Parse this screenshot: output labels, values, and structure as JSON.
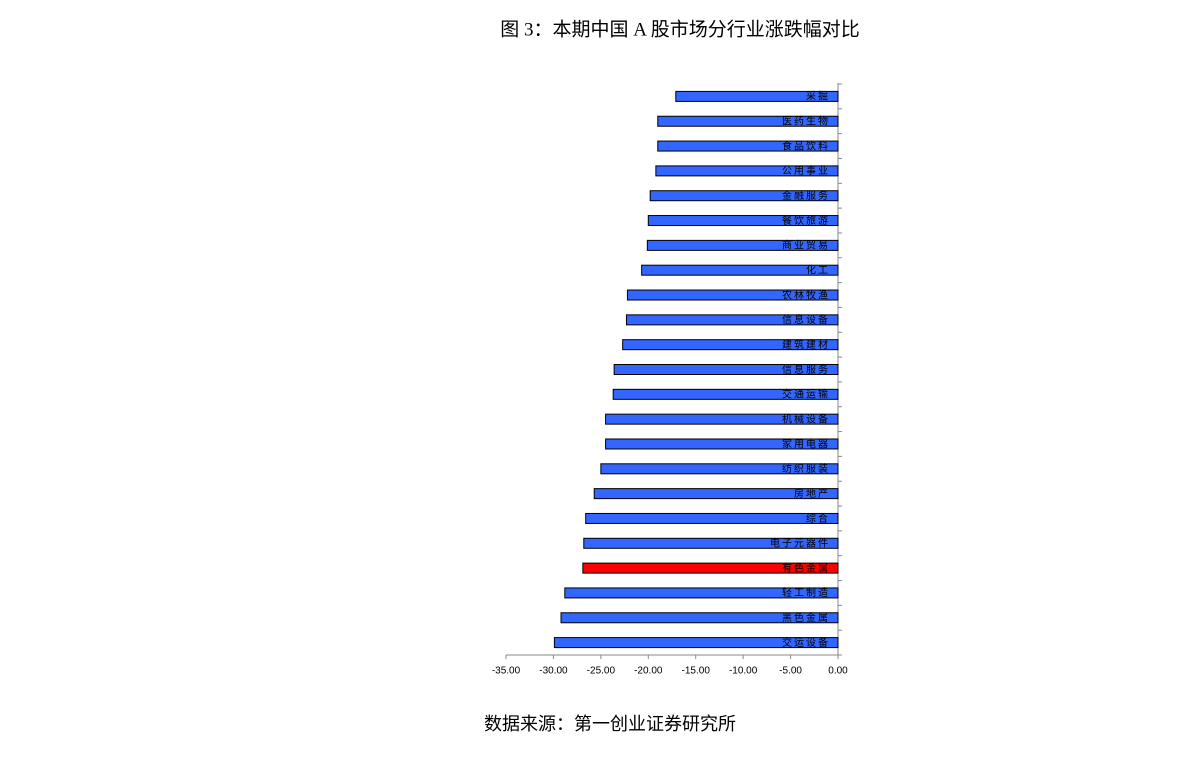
{
  "chart_data": {
    "type": "hbar",
    "title": "图 3：本期中国 A 股市场分行业涨跌幅对比",
    "source": "数据来源：第一创业证券研究所",
    "categories": [
      "采掘",
      "医药生物",
      "食品饮料",
      "公用事业",
      "金融服务",
      "餐饮旅游",
      "商业贸易",
      "化工",
      "农林牧渔",
      "信息设备",
      "建筑建材",
      "信息服务",
      "交通运输",
      "机械设备",
      "家用电器",
      "纺织服装",
      "房地产",
      "综合",
      "电子元器件",
      "有色金属",
      "轻工制造",
      "黑色金属",
      "交运设备"
    ],
    "values": [
      -17.1,
      -19.0,
      -19.0,
      -19.2,
      -19.8,
      -20.0,
      -20.1,
      -20.7,
      -22.2,
      -22.3,
      -22.7,
      -23.6,
      -23.7,
      -24.5,
      -24.5,
      -25.0,
      -25.7,
      -26.6,
      -26.8,
      -26.9,
      -28.8,
      -29.2,
      -29.9
    ],
    "colors": [
      "#3366ff",
      "#3366ff",
      "#3366ff",
      "#3366ff",
      "#3366ff",
      "#3366ff",
      "#3366ff",
      "#3366ff",
      "#3366ff",
      "#3366ff",
      "#3366ff",
      "#3366ff",
      "#3366ff",
      "#3366ff",
      "#3366ff",
      "#3366ff",
      "#3366ff",
      "#3366ff",
      "#3366ff",
      "#ff0000",
      "#3366ff",
      "#3366ff",
      "#3366ff"
    ],
    "xlim": [
      -35,
      0
    ],
    "xticks": [
      {
        "value": -35,
        "label": "-35.00"
      },
      {
        "value": -30,
        "label": "-30.00"
      },
      {
        "value": -25,
        "label": "-25.00"
      },
      {
        "value": -20,
        "label": "-20.00"
      },
      {
        "value": -15,
        "label": "-15.00"
      },
      {
        "value": -10,
        "label": "-10.00"
      },
      {
        "value": -5,
        "label": "-5.00"
      },
      {
        "value": 0,
        "label": "0.00"
      }
    ]
  }
}
